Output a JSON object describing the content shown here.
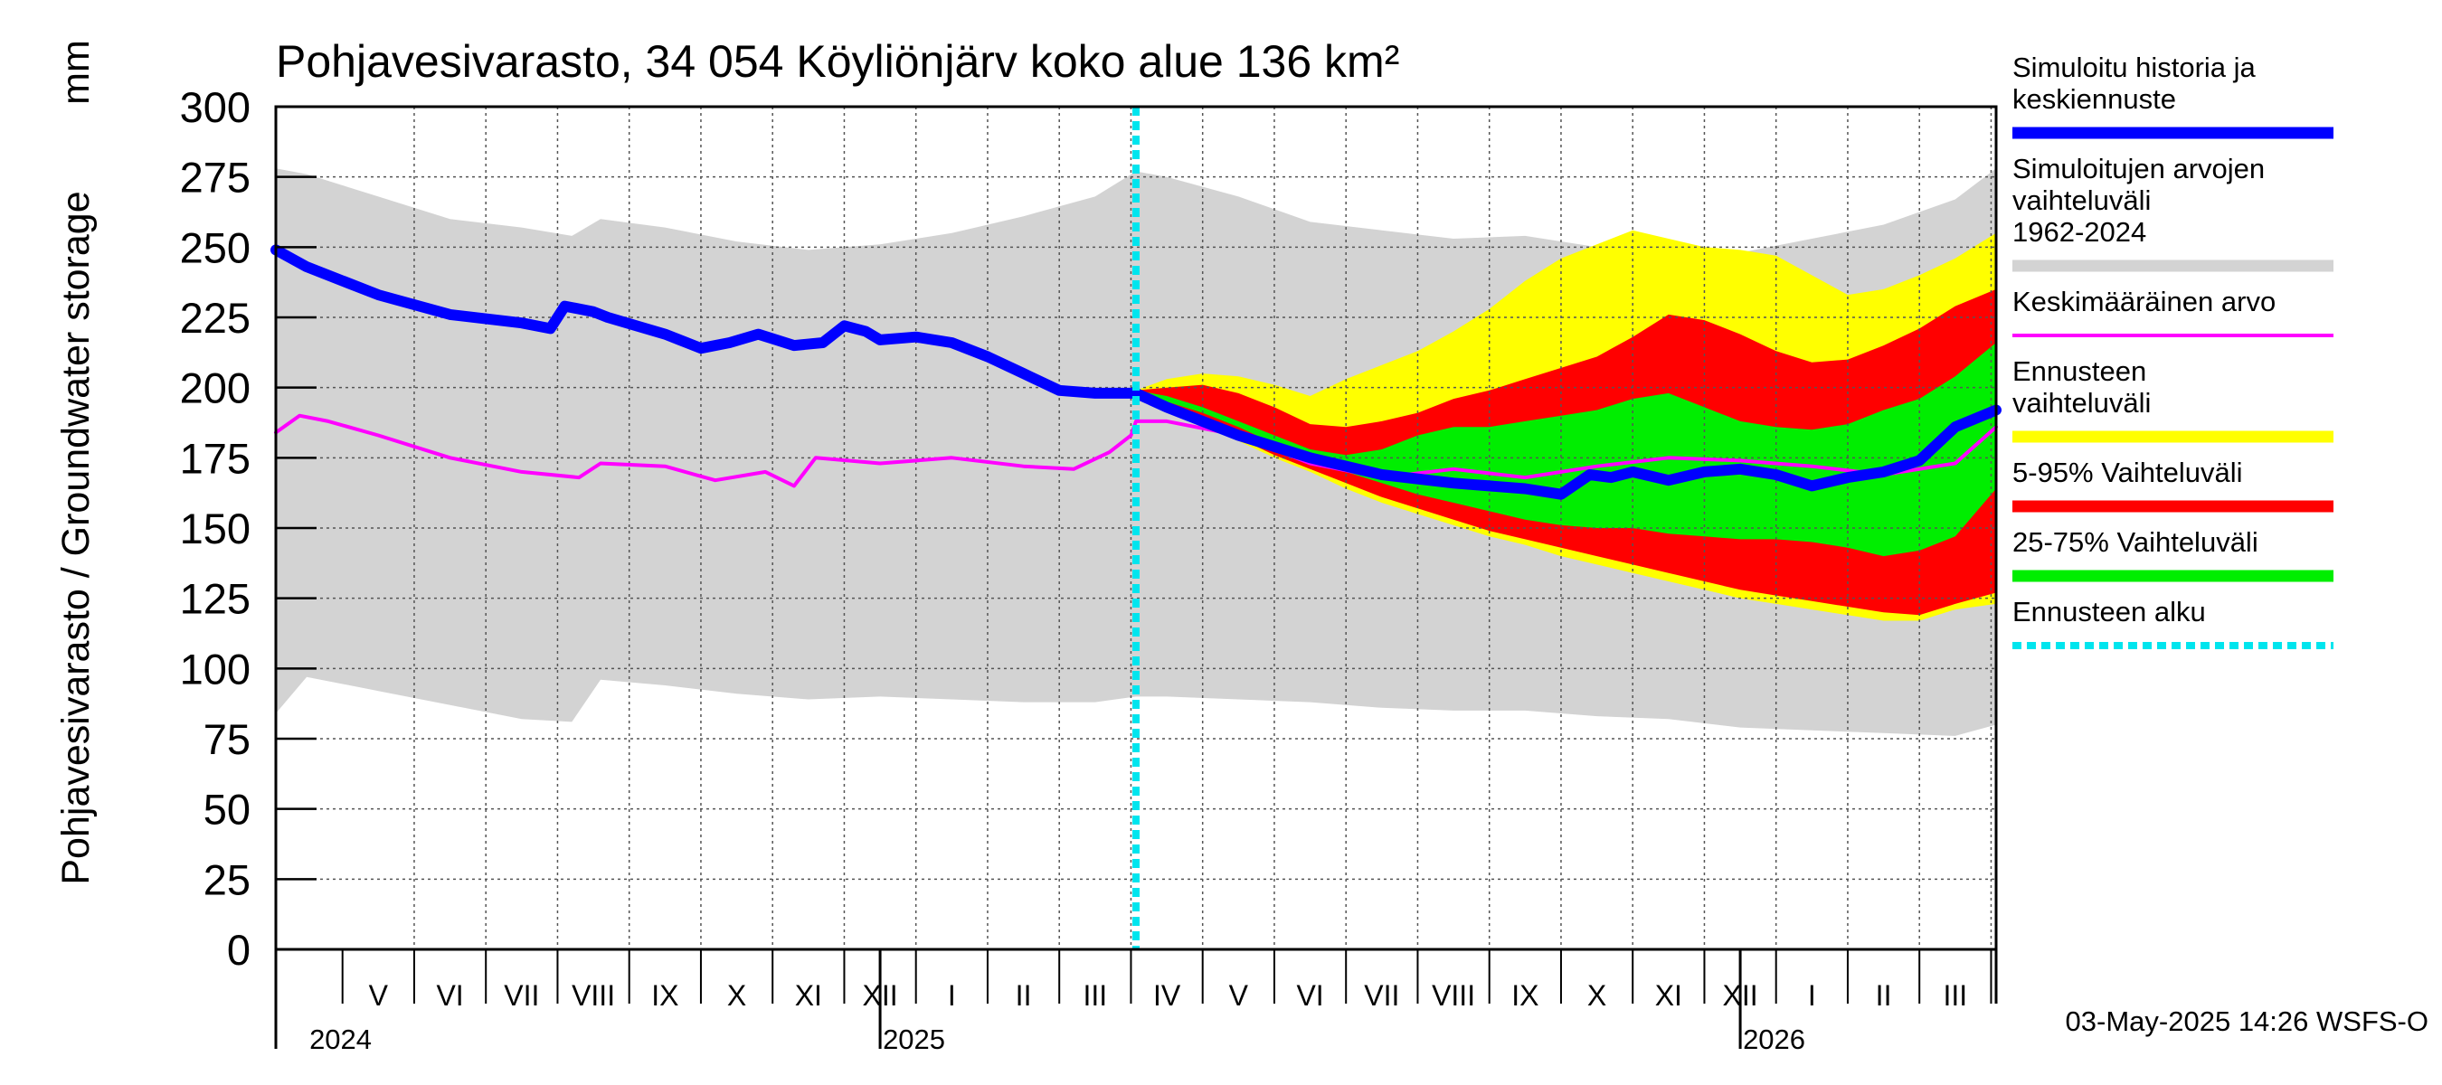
{
  "chart_data": {
    "type": "area",
    "title": "Pohjavesivarasto, 34 054 Köyliönjärv koko alue 136 km²",
    "ylabel": "Pohjavesivarasto / Groundwater storage",
    "yunit": "mm",
    "ylim": [
      0,
      300
    ],
    "yticks": [
      0,
      25,
      50,
      75,
      100,
      125,
      150,
      175,
      200,
      225,
      250,
      275,
      300
    ],
    "xlim": [
      -0.93,
      23.07
    ],
    "months": [
      {
        "label": "V",
        "pos": 0.5
      },
      {
        "label": "VI",
        "pos": 1.5
      },
      {
        "label": "VII",
        "pos": 2.5
      },
      {
        "label": "VIII",
        "pos": 3.5
      },
      {
        "label": "IX",
        "pos": 4.5
      },
      {
        "label": "X",
        "pos": 5.5
      },
      {
        "label": "XI",
        "pos": 6.5
      },
      {
        "label": "XII",
        "pos": 7.5
      },
      {
        "label": "I",
        "pos": 8.5
      },
      {
        "label": "II",
        "pos": 9.5
      },
      {
        "label": "III",
        "pos": 10.5
      },
      {
        "label": "IV",
        "pos": 11.5
      },
      {
        "label": "V",
        "pos": 12.5
      },
      {
        "label": "VI",
        "pos": 13.5
      },
      {
        "label": "VII",
        "pos": 14.5
      },
      {
        "label": "VIII",
        "pos": 15.5
      },
      {
        "label": "IX",
        "pos": 16.5
      },
      {
        "label": "X",
        "pos": 17.5
      },
      {
        "label": "XI",
        "pos": 18.5
      },
      {
        "label": "XII",
        "pos": 19.5
      },
      {
        "label": "I",
        "pos": 20.5
      },
      {
        "label": "II",
        "pos": 21.5
      },
      {
        "label": "III",
        "pos": 22.5
      },
      {
        "label": "IV",
        "pos": 23.5
      }
    ],
    "years": [
      {
        "label": "2024",
        "pos": 0
      },
      {
        "label": "2025",
        "pos": 8
      },
      {
        "label": "2026",
        "pos": 20
      }
    ],
    "forecast_start_x": 11.07,
    "series": [
      {
        "name": "Simuloitujen arvojen vaihteluväli 1962-2024",
        "kind": "band",
        "color": "#d3d3d3",
        "x": [
          -0.93,
          -0.5,
          0.5,
          1.5,
          2.5,
          3.2,
          3.6,
          4.5,
          5.5,
          6.5,
          7.5,
          8.5,
          9.5,
          10.5,
          11.07,
          11.5,
          12.5,
          13.5,
          14.5,
          15.5,
          16.5,
          17.5,
          18.5,
          19.5,
          20.5,
          21.5,
          22.5,
          23.07
        ],
        "upper": [
          278,
          276,
          268,
          260,
          257,
          254,
          260,
          257,
          252,
          249,
          251,
          255,
          261,
          268,
          277,
          275,
          268,
          259,
          256,
          253,
          254,
          250,
          251,
          248,
          253,
          258,
          267,
          278
        ],
        "lower": [
          84,
          97,
          92,
          87,
          82,
          81,
          96,
          94,
          91,
          89,
          90,
          89,
          88,
          88,
          90,
          90,
          89,
          88,
          86,
          85,
          85,
          83,
          82,
          79,
          78,
          77,
          76,
          80
        ]
      },
      {
        "name": "Ennusteen vaihteluväli",
        "kind": "band",
        "color": "#ffff00",
        "x": [
          11.07,
          11.5,
          12.0,
          12.5,
          13.0,
          13.5,
          14.0,
          14.5,
          15.0,
          15.5,
          16.0,
          16.5,
          17.0,
          17.5,
          18.0,
          18.5,
          19.0,
          19.5,
          20.0,
          20.5,
          21.0,
          21.5,
          22.0,
          22.5,
          23.07
        ],
        "upper": [
          199,
          203,
          205,
          204,
          201,
          197,
          203,
          208,
          213,
          220,
          228,
          238,
          246,
          251,
          256,
          253,
          250,
          249,
          247,
          240,
          233,
          235,
          240,
          246,
          255
        ],
        "lower": [
          199,
          193,
          187,
          181,
          175,
          170,
          164,
          159,
          155,
          151,
          147,
          144,
          140,
          137,
          134,
          131,
          128,
          125,
          123,
          121,
          119,
          117,
          117,
          121,
          123
        ]
      },
      {
        "name": "5-95% Vaihteluväli",
        "kind": "band",
        "color": "#ff0000",
        "x": [
          11.07,
          11.5,
          12.0,
          12.5,
          13.0,
          13.5,
          14.0,
          14.5,
          15.0,
          15.5,
          16.0,
          16.5,
          17.0,
          17.5,
          18.0,
          18.5,
          19.0,
          19.5,
          20.0,
          20.5,
          21.0,
          21.5,
          22.0,
          22.5,
          23.07
        ],
        "upper": [
          199,
          200,
          201,
          198,
          193,
          187,
          186,
          188,
          191,
          196,
          199,
          203,
          207,
          211,
          218,
          226,
          224,
          219,
          213,
          209,
          210,
          215,
          221,
          229,
          235
        ],
        "lower": [
          199,
          194,
          188,
          182,
          176,
          171,
          166,
          161,
          157,
          153,
          149,
          146,
          143,
          140,
          137,
          134,
          131,
          128,
          126,
          124,
          122,
          120,
          119,
          123,
          127
        ]
      },
      {
        "name": "25-75% Vaihteluväli",
        "kind": "band",
        "color": "#00ee00",
        "x": [
          11.07,
          11.5,
          12.0,
          12.5,
          13.0,
          13.5,
          14.0,
          14.5,
          15.0,
          15.5,
          16.0,
          16.5,
          17.0,
          17.5,
          18.0,
          18.5,
          19.0,
          19.5,
          20.0,
          20.5,
          21.0,
          21.5,
          22.0,
          22.5,
          23.07
        ],
        "upper": [
          199,
          197,
          193,
          188,
          183,
          178,
          176,
          178,
          183,
          186,
          186,
          188,
          190,
          192,
          196,
          198,
          193,
          188,
          186,
          185,
          187,
          192,
          196,
          204,
          216
        ],
        "lower": [
          199,
          195,
          191,
          186,
          180,
          175,
          170,
          166,
          162,
          159,
          156,
          153,
          151,
          150,
          150,
          148,
          147,
          146,
          146,
          145,
          143,
          140,
          142,
          147,
          164
        ]
      },
      {
        "name": "Keskimääräinen arvo",
        "kind": "line",
        "color": "#ff00ff",
        "x": [
          -0.93,
          -0.6,
          -0.2,
          0.5,
          1.5,
          2.5,
          3.3,
          3.6,
          4.5,
          5.2,
          5.9,
          6.3,
          6.6,
          7.5,
          8.5,
          9.5,
          10.2,
          10.7,
          11.0,
          11.07,
          11.5,
          12.5,
          13.5,
          14.5,
          15.5,
          16.5,
          17.5,
          18.5,
          19.5,
          20.5,
          21.5,
          22.5,
          23.07
        ],
        "y": [
          184,
          190,
          188,
          183,
          175,
          170,
          168,
          173,
          172,
          167,
          170,
          165,
          175,
          173,
          175,
          172,
          171,
          177,
          183,
          188,
          188,
          183,
          173,
          168,
          171,
          168,
          172,
          175,
          174,
          172,
          169,
          173,
          186
        ]
      },
      {
        "name": "Simuloitu historia ja keskiennuste",
        "kind": "line",
        "color": "#0000ff",
        "x": [
          -0.93,
          -0.5,
          0.5,
          1.5,
          2.5,
          2.9,
          3.1,
          3.5,
          3.7,
          4.5,
          5.0,
          5.4,
          5.8,
          6.3,
          6.7,
          7.0,
          7.3,
          7.5,
          8.0,
          8.5,
          9.0,
          9.5,
          10.0,
          10.5,
          11.07,
          11.5,
          12.5,
          13.5,
          14.5,
          15.5,
          16.5,
          17.0,
          17.4,
          17.7,
          18.0,
          18.5,
          19.0,
          19.5,
          20.0,
          20.5,
          21.0,
          21.5,
          22.0,
          22.5,
          23.07
        ],
        "y": [
          249,
          243,
          233,
          226,
          223,
          221,
          229,
          227,
          225,
          219,
          214,
          216,
          219,
          215,
          216,
          222,
          220,
          217,
          218,
          216,
          211,
          205,
          199,
          198,
          198,
          193,
          183,
          175,
          169,
          166,
          164,
          162,
          169,
          168,
          170,
          167,
          170,
          171,
          169,
          165,
          168,
          170,
          174,
          186,
          192
        ]
      }
    ],
    "legend": [
      {
        "label": "Simuloitu historia ja keskiennuste",
        "color": "#0000ff",
        "style": "thick"
      },
      {
        "label": "Simuloitujen arvojen vaihteluväli 1962-2024",
        "color": "#d3d3d3",
        "style": "thick"
      },
      {
        "label": "Keskimääräinen arvo",
        "color": "#ff00ff",
        "style": "thin"
      },
      {
        "label": "Ennusteen vaihteluväli",
        "color": "#ffff00",
        "style": "thick"
      },
      {
        "label": "5-95% Vaihteluväli",
        "color": "#ff0000",
        "style": "thick"
      },
      {
        "label": "25-75% Vaihteluväli",
        "color": "#00ee00",
        "style": "thick"
      },
      {
        "label": "Ennusteen alku",
        "color": "#00e5ee",
        "style": "dotted"
      }
    ],
    "footer": "03-May-2025 14:26 WSFS-O"
  }
}
